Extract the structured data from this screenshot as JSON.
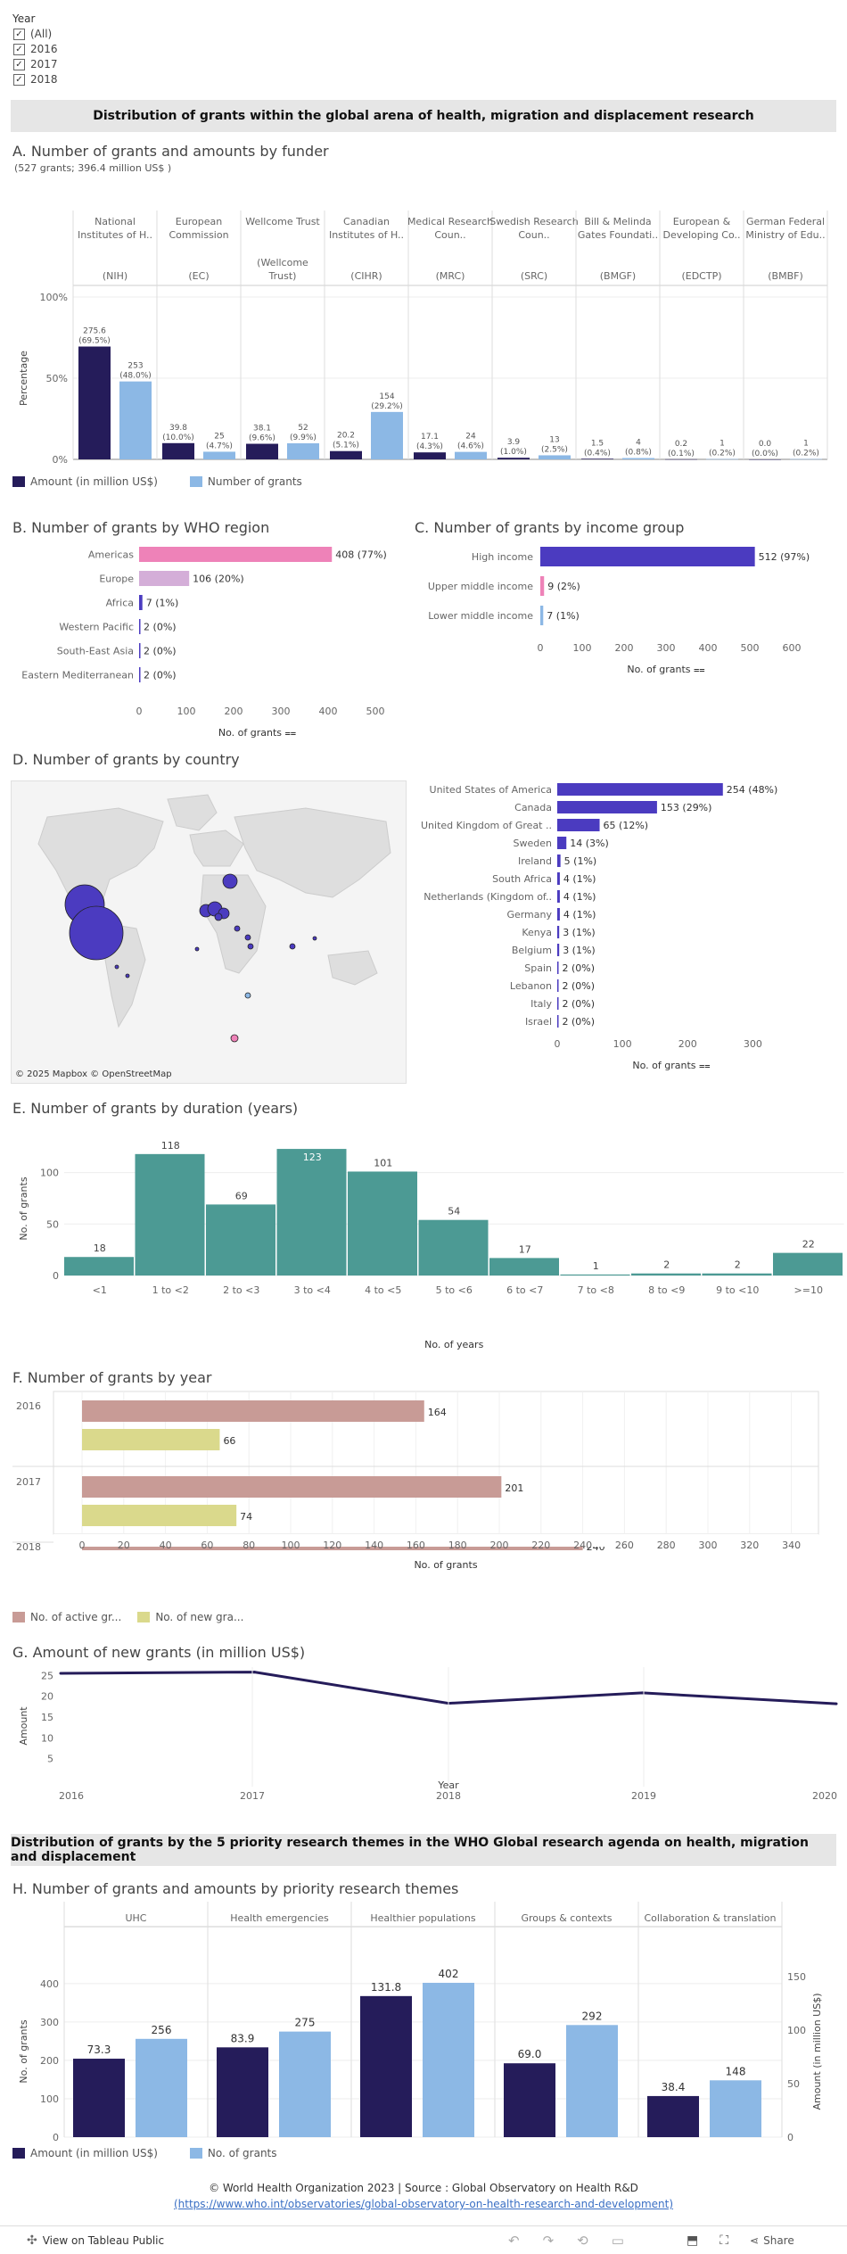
{
  "filter": {
    "title": "Year",
    "items": [
      "(All)",
      "2016",
      "2017",
      "2018"
    ]
  },
  "band1": "Distribution of grants within the global arena of health, migration and displacement research",
  "band2": "Distribution of grants by the 5 priority research themes in the WHO Global research agenda on health, migration and displacement",
  "secA": {
    "title": "A. Number of grants and amounts by funder",
    "subtitle": "(527 grants; 396.4 million US$ )"
  },
  "secB": {
    "title": "B. Number of grants by WHO region"
  },
  "secC": {
    "title": "C. Number of grants by income group"
  },
  "secD": {
    "title": "D. Number of grants by country",
    "attribution": "© 2025 Mapbox  © OpenStreetMap"
  },
  "secE": {
    "title": "E. Number of grants by duration (years)"
  },
  "secF": {
    "title": "F. Number of grants by year"
  },
  "secG": {
    "title": "G. Amount of new grants (in million US$)"
  },
  "secH": {
    "title": "H. Number of grants and amounts by priority research themes"
  },
  "footer": {
    "line1": "© World Health Organization 2023 | Source : Global Observatory on Health R&D",
    "line2": "(https://www.who.int/observatories/global-observatory-on-health-research-and-development)",
    "view_label": "View on Tableau Public",
    "share_label": "Share"
  },
  "colors": {
    "navy": "#251c5a",
    "lightblue": "#8cb8e5",
    "purple": "#4b3bc0",
    "pink": "#ee82b8",
    "lilac": "#d4aed8",
    "teal": "#4c9a94",
    "rose": "#c89b96",
    "olive": "#dad98c"
  },
  "chart_data": [
    {
      "id": "A",
      "type": "bar",
      "funders": [
        {
          "top": "National Institutes of H..",
          "bottom": "(NIH)",
          "amount": "275.6",
          "amount_pct": "(69.5%)",
          "amount_v": 69.5,
          "count": "253",
          "count_pct": "(48.0%)",
          "count_v": 48.0
        },
        {
          "top": "European Commission",
          "bottom": "(EC)",
          "amount": "39.8",
          "amount_pct": "(10.0%)",
          "amount_v": 10.0,
          "count": "25",
          "count_pct": "(4.7%)",
          "count_v": 4.7
        },
        {
          "top": "Wellcome Trust",
          "bottom": "(Wellcome Trust)",
          "amount": "38.1",
          "amount_pct": "(9.6%)",
          "amount_v": 9.6,
          "count": "52",
          "count_pct": "(9.9%)",
          "count_v": 9.9
        },
        {
          "top": "Canadian Institutes of H..",
          "bottom": "(CIHR)",
          "amount": "20.2",
          "amount_pct": "(5.1%)",
          "amount_v": 5.1,
          "count": "154",
          "count_pct": "(29.2%)",
          "count_v": 29.2
        },
        {
          "top": "Medical Research Coun..",
          "bottom": "(MRC)",
          "amount": "17.1",
          "amount_pct": "(4.3%)",
          "amount_v": 4.3,
          "count": "24",
          "count_pct": "(4.6%)",
          "count_v": 4.6
        },
        {
          "top": "Swedish Research Coun..",
          "bottom": "(SRC)",
          "amount": "3.9",
          "amount_pct": "(1.0%)",
          "amount_v": 1.0,
          "count": "13",
          "count_pct": "(2.5%)",
          "count_v": 2.5
        },
        {
          "top": "Bill & Melinda Gates Foundati..",
          "bottom": "(BMGF)",
          "amount": "1.5",
          "amount_pct": "(0.4%)",
          "amount_v": 0.4,
          "count": "4",
          "count_pct": "(0.8%)",
          "count_v": 0.8
        },
        {
          "top": "European & Developing Co..",
          "bottom": "(EDCTP)",
          "amount": "0.2",
          "amount_pct": "(0.1%)",
          "amount_v": 0.1,
          "count": "1",
          "count_pct": "(0.2%)",
          "count_v": 0.2
        },
        {
          "top": "German Federal Ministry of Edu..",
          "bottom": "(BMBF)",
          "amount": "0.0",
          "amount_pct": "(0.0%)",
          "amount_v": 0.0,
          "count": "1",
          "count_pct": "(0.2%)",
          "count_v": 0.2
        }
      ],
      "yticks": [
        "100%",
        "50%",
        "0%"
      ],
      "ylabel": "Percentage",
      "legend": [
        "Amount (in million US$)",
        "Number of grants"
      ]
    },
    {
      "id": "B",
      "type": "bar",
      "categories": [
        "Americas",
        "Europe",
        "Africa",
        "Western Pacific",
        "South-East Asia",
        "Eastern Mediterranean"
      ],
      "values": [
        408,
        106,
        7,
        2,
        2,
        2
      ],
      "labels": [
        "408 (77%)",
        "106 (20%)",
        "7 (1%)",
        "2 (0%)",
        "2 (0%)",
        "2 (0%)"
      ],
      "xticks": [
        "0",
        "100",
        "200",
        "300",
        "400",
        "500"
      ],
      "xlim": [
        0,
        500
      ],
      "xlabel": "No. of grants"
    },
    {
      "id": "C",
      "type": "bar",
      "categories": [
        "High income",
        "Upper middle income",
        "Lower middle income"
      ],
      "values": [
        512,
        9,
        7
      ],
      "labels": [
        "512 (97%)",
        "9 (2%)",
        "7 (1%)"
      ],
      "xticks": [
        "0",
        "100",
        "200",
        "300",
        "400",
        "500",
        "600"
      ],
      "xlim": [
        0,
        600
      ],
      "xlabel": "No. of grants"
    },
    {
      "id": "D",
      "type": "bar",
      "categories": [
        "United States of America",
        "Canada",
        "United Kingdom of Great ..",
        "Sweden",
        "Ireland",
        "South Africa",
        "Netherlands (Kingdom of..",
        "Germany",
        "Kenya",
        "Belgium",
        "Spain",
        "Lebanon",
        "Italy",
        "Israel"
      ],
      "values": [
        254,
        153,
        65,
        14,
        5,
        4,
        4,
        4,
        3,
        3,
        2,
        2,
        2,
        2
      ],
      "labels": [
        "254 (48%)",
        "153 (29%)",
        "65 (12%)",
        "14 (3%)",
        "5 (1%)",
        "4 (1%)",
        "4 (1%)",
        "4 (1%)",
        "3 (1%)",
        "3 (1%)",
        "2 (0%)",
        "2 (0%)",
        "2 (0%)",
        "2 (0%)"
      ],
      "xticks": [
        "0",
        "100",
        "200",
        "300"
      ],
      "xlim": [
        0,
        350
      ],
      "xlabel": "No. of grants"
    },
    {
      "id": "E",
      "type": "bar",
      "categories": [
        "<1",
        "1 to <2",
        "2 to <3",
        "3 to <4",
        "4 to <5",
        "5 to <6",
        "6 to <7",
        "7 to <8",
        "8 to <9",
        "9 to <10",
        ">=10"
      ],
      "values": [
        18,
        118,
        69,
        123,
        101,
        54,
        17,
        1,
        2,
        2,
        22
      ],
      "yticks": [
        "0",
        "50",
        "100"
      ],
      "ylim": [
        0,
        130
      ],
      "xlabel": "Year",
      "xlabel2": "No. of years",
      "ylabel": "No. of grants"
    },
    {
      "id": "F",
      "type": "bar",
      "years": [
        "2016",
        "2017",
        "2018"
      ],
      "series": [
        {
          "name": "No. of active gr...",
          "values": [
            164,
            201,
            240
          ]
        },
        {
          "name": "No. of new gra...",
          "values": [
            66,
            74,
            null
          ]
        }
      ],
      "xticks": [
        "0",
        "20",
        "40",
        "60",
        "80",
        "100",
        "120",
        "140",
        "160",
        "180",
        "200",
        "220",
        "240",
        "260",
        "280",
        "300",
        "320",
        "340"
      ],
      "xlim": [
        0,
        350
      ],
      "xlabel": "No. of grants"
    },
    {
      "id": "G",
      "type": "line",
      "x": [
        "2016",
        "2017",
        "2018",
        "2019",
        "2020"
      ],
      "values": [
        25.5,
        25.8,
        18.3,
        20.8,
        18.2
      ],
      "yticks": [
        "25",
        "20",
        "15",
        "10",
        "5"
      ],
      "ylim": [
        0,
        27
      ],
      "ylabel": "Amount"
    },
    {
      "id": "H",
      "type": "bar",
      "themes": [
        "UHC",
        "Health emergencies",
        "Healthier populations",
        "Groups & contexts",
        "Collaboration & translation"
      ],
      "amounts": [
        73.3,
        83.9,
        131.8,
        69.0,
        38.4
      ],
      "amount_labels": [
        "73.3",
        "83.9",
        "131.8",
        "69.0",
        "38.4"
      ],
      "grants": [
        256,
        275,
        402,
        292,
        148
      ],
      "grant_labels": [
        "256",
        "275",
        "402",
        "292",
        "148"
      ],
      "yticks_left": [
        "400",
        "300",
        "200",
        "100",
        "0"
      ],
      "yticks_right": [
        "150",
        "100",
        "50",
        "0"
      ],
      "ylabel_left": "No. of grants",
      "ylabel_right": "Amount (in million US$)",
      "legend": [
        "Amount (in million US$)",
        "No. of grants"
      ]
    }
  ]
}
